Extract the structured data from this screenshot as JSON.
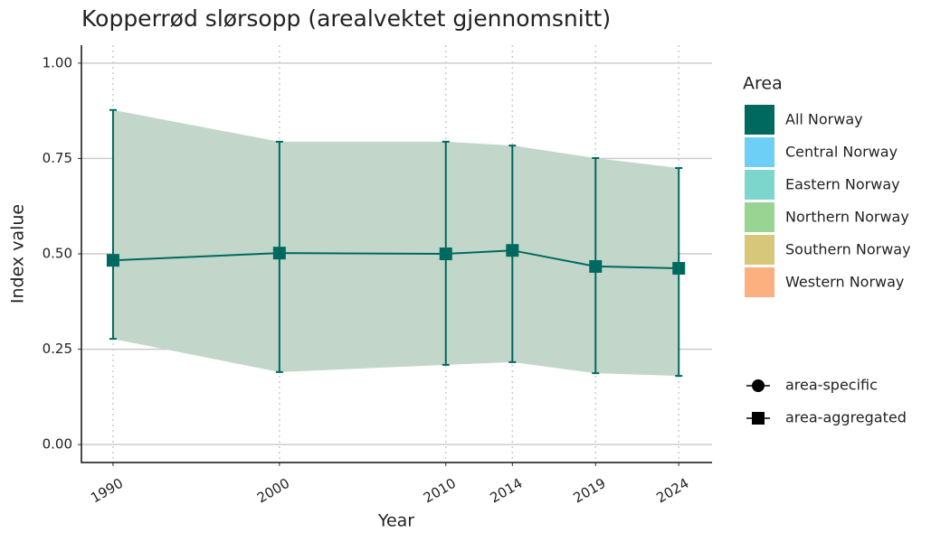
{
  "chart_data": {
    "type": "line",
    "title": "Kopperrød slørsopp (arealvektet gjennomsnitt)",
    "xlabel": "Year",
    "ylabel": "Index value",
    "x": [
      1990,
      2000,
      2010,
      2014,
      2019,
      2024
    ],
    "series": [
      {
        "color": "#00695f",
        "band_color": "#c2d7c9",
        "values": [
          0.483,
          0.502,
          0.5,
          0.509,
          0.467,
          0.462
        ],
        "lower": [
          0.277,
          0.19,
          0.209,
          0.216,
          0.187,
          0.18
        ],
        "upper": [
          0.877,
          0.794,
          0.794,
          0.784,
          0.751,
          0.725
        ]
      }
    ],
    "xlim": [
      1988.1,
      2026
    ],
    "xticks": [
      1990,
      2000,
      2010,
      2014,
      2019,
      2024
    ],
    "ylim": [
      -0.047,
      1.047
    ],
    "yticks": [
      {
        "value": 0,
        "label": "0.00"
      },
      {
        "value": 0.25,
        "label": "0.25"
      },
      {
        "value": 0.5,
        "label": "0.50"
      },
      {
        "value": 0.75,
        "label": "0.75"
      },
      {
        "value": 1,
        "label": "1.00"
      }
    ],
    "grid": true,
    "legend": {
      "title": "Area",
      "items": [
        {
          "name": "All Norway",
          "color": "#00695f"
        },
        {
          "name": "Central Norway",
          "color": "#6ecff6"
        },
        {
          "name": "Eastern Norway",
          "color": "#7dd6cc"
        },
        {
          "name": "Northern Norway",
          "color": "#9ad492"
        },
        {
          "name": "Southern Norway",
          "color": "#d6c77a"
        },
        {
          "name": "Western Norway",
          "color": "#fcb07f"
        }
      ]
    },
    "shape_legend": [
      {
        "name": "area-specific",
        "shape": "circle"
      },
      {
        "name": "area-aggregated",
        "shape": "square"
      }
    ]
  }
}
